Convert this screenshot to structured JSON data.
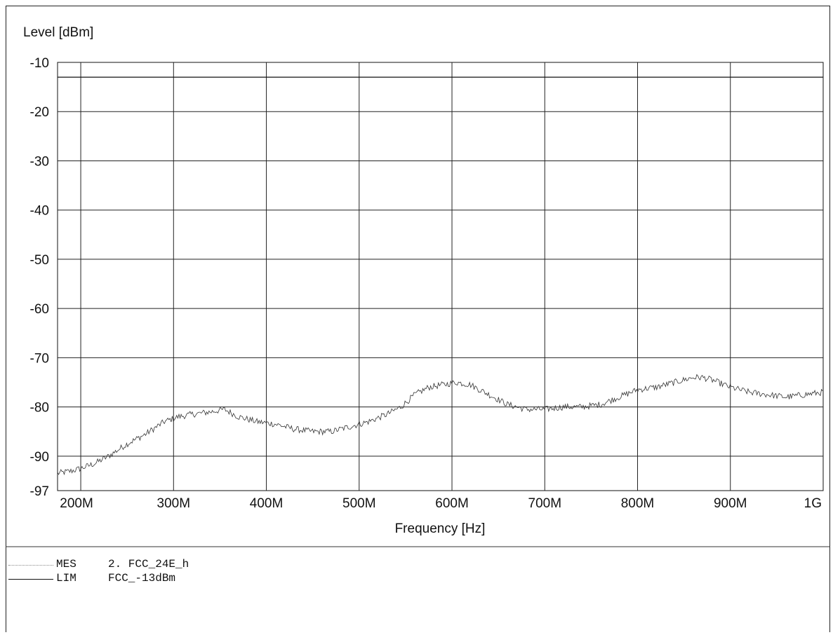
{
  "chart_data": {
    "type": "line",
    "ylabel": "Level [dBm]",
    "xlabel": "Frequency [Hz]",
    "xlim": [
      175,
      1000
    ],
    "ylim": [
      -97,
      -10
    ],
    "x_ticks": [
      {
        "value": 200,
        "label": "200M"
      },
      {
        "value": 300,
        "label": "300M"
      },
      {
        "value": 400,
        "label": "400M"
      },
      {
        "value": 500,
        "label": "500M"
      },
      {
        "value": 600,
        "label": "600M"
      },
      {
        "value": 700,
        "label": "700M"
      },
      {
        "value": 800,
        "label": "800M"
      },
      {
        "value": 900,
        "label": "900M"
      },
      {
        "value": 1000,
        "label": "1G"
      }
    ],
    "y_ticks": [
      {
        "value": -10,
        "label": "-10"
      },
      {
        "value": -20,
        "label": "-20"
      },
      {
        "value": -30,
        "label": "-30"
      },
      {
        "value": -40,
        "label": "-40"
      },
      {
        "value": -50,
        "label": "-50"
      },
      {
        "value": -60,
        "label": "-60"
      },
      {
        "value": -70,
        "label": "-70"
      },
      {
        "value": -80,
        "label": "-80"
      },
      {
        "value": -90,
        "label": "-90"
      },
      {
        "value": -97,
        "label": "-97"
      }
    ],
    "grid": true,
    "series": [
      {
        "name": "MES 2. FCC_24E_h",
        "style": "measured",
        "color": "#333333",
        "x": [
          175,
          190,
          200,
          215,
          230,
          250,
          270,
          290,
          305,
          320,
          340,
          355,
          370,
          390,
          410,
          430,
          450,
          470,
          490,
          510,
          530,
          545,
          560,
          575,
          590,
          605,
          620,
          640,
          660,
          680,
          700,
          720,
          740,
          760,
          780,
          800,
          820,
          840,
          860,
          870,
          880,
          900,
          920,
          940,
          960,
          980,
          1000
        ],
        "y": [
          -93.5,
          -93,
          -92.5,
          -91.5,
          -90,
          -87.5,
          -85.5,
          -83,
          -82,
          -81.5,
          -81,
          -80.5,
          -82,
          -83,
          -83.5,
          -84.5,
          -85,
          -85,
          -84,
          -83,
          -81.5,
          -80,
          -77.5,
          -76,
          -75.5,
          -75,
          -75.5,
          -77.5,
          -79.5,
          -80.5,
          -80.5,
          -80,
          -80,
          -79.5,
          -78,
          -76.5,
          -76,
          -75,
          -74,
          -74,
          -74.5,
          -76,
          -77,
          -77.5,
          -78,
          -77.5,
          -77
        ]
      },
      {
        "name": "LIM FCC_-13dBm",
        "style": "limit",
        "color": "#111111",
        "x": [
          175,
          1000
        ],
        "y": [
          -13,
          -13
        ]
      }
    ],
    "legend": [
      {
        "code": "MES",
        "name": "2. FCC_24E_h",
        "style": "dotted"
      },
      {
        "code": "LIM",
        "name": "FCC_-13dBm",
        "style": "solid"
      }
    ]
  }
}
